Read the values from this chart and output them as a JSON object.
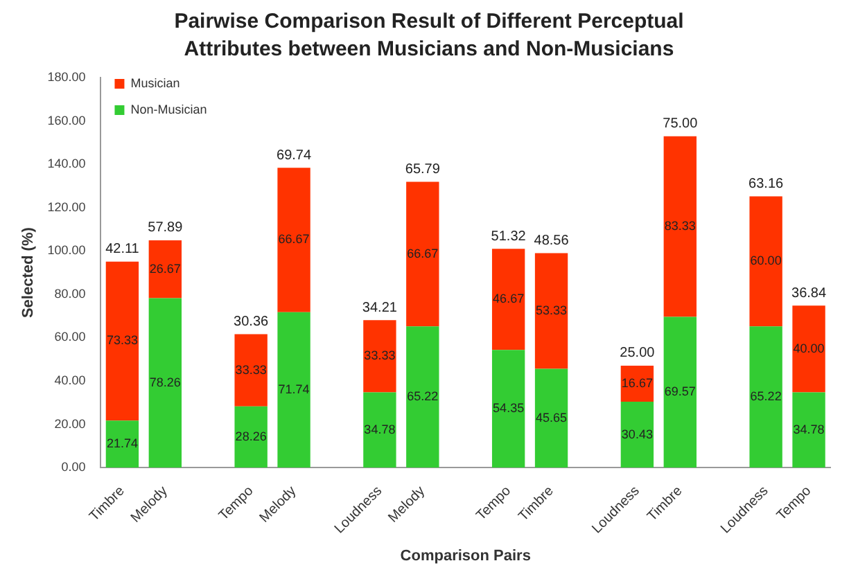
{
  "chart_data": {
    "type": "bar",
    "stacked": true,
    "title": "Pairwise Comparison Result of Different  Perceptual Attributes between Musicians and Non-Musicians",
    "xlabel": "Comparison Pairs",
    "ylabel": "Selected (%)",
    "categories": [
      "Timbre",
      "Melody",
      null,
      "Tempo",
      "Melody",
      null,
      "Loudness",
      "Melody",
      null,
      "Tempo",
      "Timbre",
      null,
      "Loudness",
      "Timbre",
      null,
      "Loudness",
      "Tempo"
    ],
    "series": [
      {
        "name": "Non-Musician",
        "color": "#33cc33",
        "values": [
          21.74,
          78.26,
          null,
          28.26,
          71.74,
          null,
          34.78,
          65.22,
          null,
          54.35,
          45.65,
          null,
          30.43,
          69.57,
          null,
          65.22,
          34.78
        ],
        "value_labels": [
          "21.74",
          "78.26",
          null,
          "28.26",
          "71.74",
          null,
          "34.78",
          "65.22",
          null,
          "54.35",
          "45.65",
          null,
          "30.43",
          "69.57",
          null,
          "65.22",
          "34.78"
        ]
      },
      {
        "name": "Musician",
        "color": "#ff3300",
        "values": [
          73.33,
          26.67,
          null,
          33.33,
          66.67,
          null,
          33.33,
          66.67,
          null,
          46.67,
          53.33,
          null,
          16.67,
          83.33,
          null,
          60.0,
          40.0
        ],
        "value_labels": [
          "73.33",
          "26.67",
          null,
          "33.33",
          "66.67",
          null,
          "33.33",
          "66.67",
          null,
          "46.67",
          "53.33",
          null,
          "16.67",
          "83.33",
          null,
          "60.00",
          "40.00"
        ]
      }
    ],
    "annotations": [
      "42.11",
      "57.89",
      "30.36",
      "69.74",
      "34.21",
      "65.79",
      "51.32",
      "48.56",
      "25.00",
      "75.00",
      "63.16",
      "36.84"
    ],
    "ylim": [
      0,
      180
    ],
    "yticks": [
      {
        "value": 0,
        "label": "0.00"
      },
      {
        "value": 20,
        "label": "20.00"
      },
      {
        "value": 40,
        "label": "40.00"
      },
      {
        "value": 60,
        "label": "60.00"
      },
      {
        "value": 80,
        "label": "80.00"
      },
      {
        "value": 100,
        "label": "100.00"
      },
      {
        "value": 120,
        "label": "120.00"
      },
      {
        "value": 140,
        "label": "140.00"
      },
      {
        "value": 160,
        "label": "160.00"
      },
      {
        "value": 180,
        "label": "180.00"
      }
    ],
    "grid": false,
    "legend": "top left"
  }
}
